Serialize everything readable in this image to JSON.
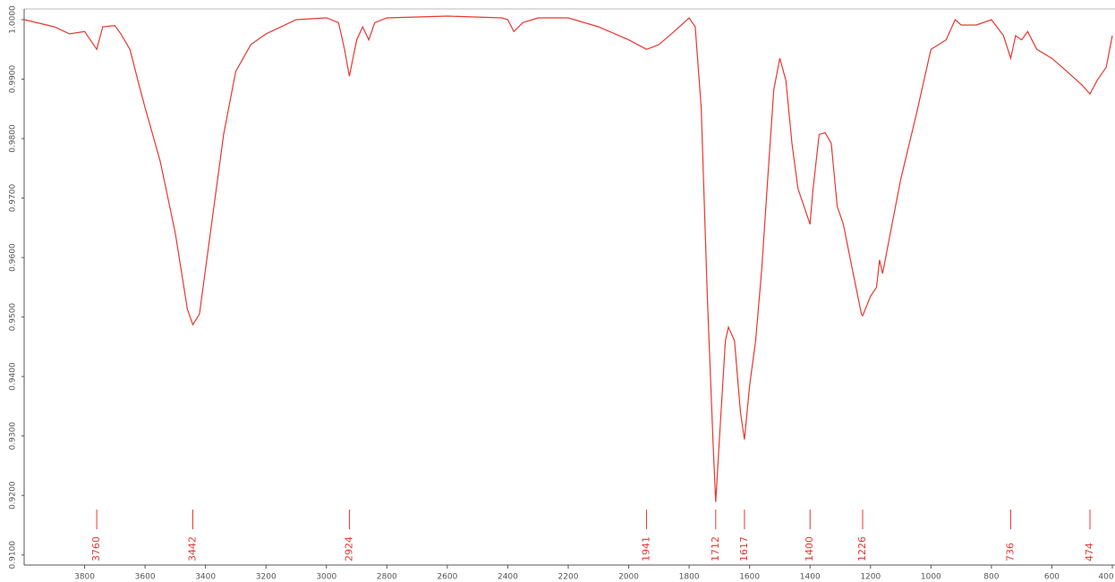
{
  "chart_data": {
    "type": "line",
    "x": [
      4000,
      3900,
      3850,
      3800,
      3760,
      3740,
      3700,
      3680,
      3650,
      3620,
      3600,
      3550,
      3500,
      3460,
      3442,
      3420,
      3380,
      3340,
      3300,
      3250,
      3200,
      3100,
      3000,
      2960,
      2940,
      2924,
      2900,
      2880,
      2860,
      2840,
      2800,
      2600,
      2420,
      2400,
      2380,
      2350,
      2300,
      2200,
      2100,
      2000,
      1941,
      1900,
      1850,
      1800,
      1780,
      1760,
      1740,
      1720,
      1712,
      1700,
      1680,
      1670,
      1650,
      1630,
      1617,
      1600,
      1580,
      1560,
      1540,
      1520,
      1500,
      1480,
      1460,
      1440,
      1420,
      1400,
      1390,
      1370,
      1350,
      1330,
      1310,
      1290,
      1260,
      1230,
      1226,
      1200,
      1180,
      1170,
      1160,
      1140,
      1100,
      1050,
      1000,
      950,
      920,
      900,
      850,
      800,
      760,
      736,
      720,
      700,
      680,
      650,
      600,
      550,
      500,
      474,
      450,
      420,
      400
    ],
    "series": [
      {
        "color": "#e8372f",
        "values": [
          1,
          0.9988,
          0.9976,
          0.998,
          0.995,
          0.9988,
          0.999,
          0.9976,
          0.995,
          0.989,
          0.9852,
          0.9762,
          0.9641,
          0.9513,
          0.9487,
          0.9505,
          0.9656,
          0.9807,
          0.9913,
          0.9958,
          0.9976,
          1,
          1.0003,
          0.9995,
          0.995,
          0.9905,
          0.9966,
          0.9988,
          0.9966,
          0.9995,
          1.0003,
          1.0006,
          1.0003,
          1,
          0.998,
          0.9995,
          1.0003,
          1.0003,
          0.9988,
          0.9966,
          0.995,
          0.9958,
          0.998,
          1.0003,
          0.9988,
          0.9852,
          0.9535,
          0.9279,
          0.9189,
          0.9294,
          0.946,
          0.9483,
          0.946,
          0.9339,
          0.9294,
          0.9385,
          0.946,
          0.958,
          0.9732,
          0.9882,
          0.9935,
          0.9898,
          0.9792,
          0.9716,
          0.9686,
          0.9656,
          0.9716,
          0.9807,
          0.981,
          0.9792,
          0.9686,
          0.9656,
          0.958,
          0.9505,
          0.9502,
          0.9535,
          0.955,
          0.9596,
          0.9573,
          0.9626,
          0.9732,
          0.9837,
          0.995,
          0.9966,
          1,
          0.9991,
          0.9991,
          1,
          0.9973,
          0.9935,
          0.9973,
          0.9966,
          0.998,
          0.995,
          0.9935,
          0.9913,
          0.989,
          0.9875,
          0.9898,
          0.992,
          0.9973
        ]
      }
    ],
    "xlim": [
      4000,
      400
    ],
    "xticks": [
      3800,
      3600,
      3400,
      3200,
      3000,
      2800,
      2600,
      2400,
      2200,
      2000,
      1800,
      1600,
      1400,
      1200,
      1000,
      800,
      600,
      400
    ],
    "ylim": [
      0.9083,
      1.0018
    ],
    "yticks": [
      {
        "value": 0.91,
        "label": "0.9100"
      },
      {
        "value": 0.92,
        "label": "0.9200"
      },
      {
        "value": 0.93,
        "label": "0.9300"
      },
      {
        "value": 0.94,
        "label": "0.9400"
      },
      {
        "value": 0.95,
        "label": "0.9500"
      },
      {
        "value": 0.96,
        "label": "0.9600"
      },
      {
        "value": 0.97,
        "label": "0.9700"
      },
      {
        "value": 0.98,
        "label": "0.9800"
      },
      {
        "value": 0.99,
        "label": "0.9900"
      },
      {
        "value": 1.0,
        "label": "1.0000"
      }
    ],
    "peak_labels": [
      3760,
      3442,
      2924,
      1941,
      1712,
      1617,
      1400,
      1226,
      736,
      474
    ],
    "grid": false
  }
}
